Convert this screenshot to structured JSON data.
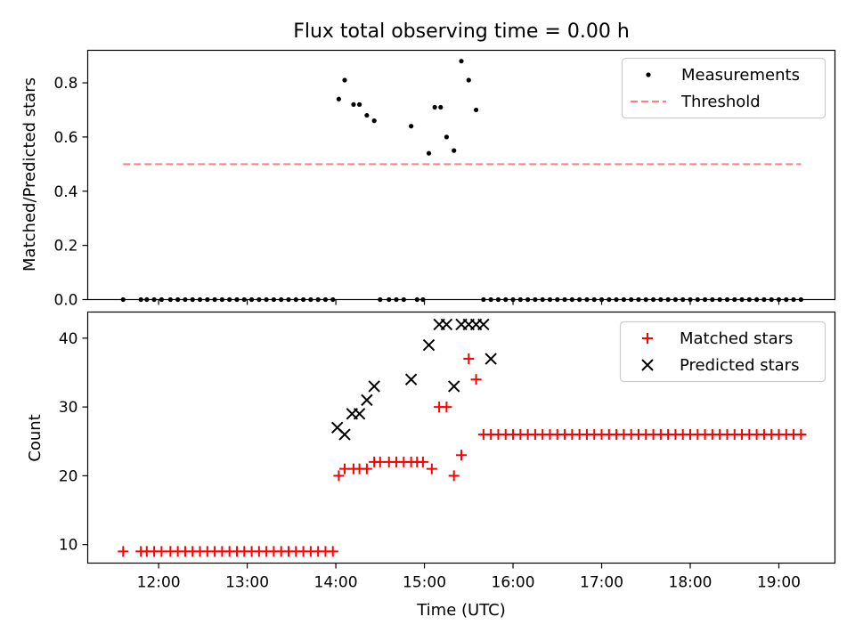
{
  "title": "Flux total observing time = 0.00 h",
  "chart_data": [
    {
      "type": "scatter",
      "ylabel": "Matched/Predicted stars",
      "xlabel": "",
      "ylim": [
        0,
        0.92
      ],
      "yticks": [
        0.0,
        0.2,
        0.4,
        0.6,
        0.8
      ],
      "legend_position": "top-right",
      "series": [
        {
          "name": "Measurements",
          "marker": "dot",
          "color": "#000000",
          "x": [
            "11:36",
            "11:48",
            "11:52",
            "11:57",
            "12:02",
            "12:08",
            "12:13",
            "12:18",
            "12:23",
            "12:28",
            "12:33",
            "12:38",
            "12:43",
            "12:48",
            "12:53",
            "12:58",
            "13:03",
            "13:08",
            "13:13",
            "13:18",
            "13:23",
            "13:28",
            "13:33",
            "13:38",
            "13:43",
            "13:48",
            "13:53",
            "13:58",
            "14:02",
            "14:06",
            "14:12",
            "14:16",
            "14:21",
            "14:26",
            "14:30",
            "14:36",
            "14:41",
            "14:46",
            "14:51",
            "14:55",
            "14:59",
            "15:03",
            "15:07",
            "15:11",
            "15:15",
            "15:20",
            "15:25",
            "15:30",
            "15:35",
            "15:40",
            "15:45",
            "15:50",
            "15:55",
            "16:00",
            "16:05",
            "16:10",
            "16:15",
            "16:20",
            "16:25",
            "16:30",
            "16:35",
            "16:40",
            "16:45",
            "16:50",
            "16:55",
            "17:00",
            "17:05",
            "17:10",
            "17:15",
            "17:20",
            "17:25",
            "17:30",
            "17:35",
            "17:40",
            "17:45",
            "17:50",
            "17:55",
            "18:00",
            "18:05",
            "18:10",
            "18:15",
            "18:20",
            "18:25",
            "18:30",
            "18:35",
            "18:40",
            "18:45",
            "18:50",
            "18:55",
            "19:00",
            "19:05",
            "19:10",
            "19:15"
          ],
          "y": [
            0,
            0,
            0,
            0,
            0,
            0,
            0,
            0,
            0,
            0,
            0,
            0,
            0,
            0,
            0,
            0,
            0,
            0,
            0,
            0,
            0,
            0,
            0,
            0,
            0,
            0,
            0,
            0,
            0.74,
            0.81,
            0.72,
            0.72,
            0.68,
            0.66,
            0,
            0,
            0,
            0,
            0.64,
            0,
            0,
            0.54,
            0.71,
            0.71,
            0.6,
            0.55,
            0.88,
            0.81,
            0.7,
            0,
            0,
            0,
            0,
            0,
            0,
            0,
            0,
            0,
            0,
            0,
            0,
            0,
            0,
            0,
            0,
            0,
            0,
            0,
            0,
            0,
            0,
            0,
            0,
            0,
            0,
            0,
            0,
            0,
            0,
            0,
            0,
            0,
            0,
            0,
            0,
            0,
            0,
            0,
            0,
            0,
            0,
            0,
            0
          ]
        },
        {
          "name": "Threshold",
          "marker": "dashed-line",
          "color": "#ff7f7f",
          "x": [
            "11:36",
            "19:15"
          ],
          "y": [
            0.5,
            0.5
          ]
        }
      ]
    },
    {
      "type": "scatter",
      "ylabel": "Count",
      "xlabel": "Time (UTC)",
      "ylim": [
        7.3,
        43.8
      ],
      "yticks": [
        10,
        20,
        30,
        40
      ],
      "xlim": [
        "11:12",
        "19:38"
      ],
      "xticks": [
        "12:00",
        "13:00",
        "14:00",
        "15:00",
        "16:00",
        "17:00",
        "18:00",
        "19:00"
      ],
      "legend_position": "top-right",
      "series": [
        {
          "name": "Matched stars",
          "marker": "plus",
          "color": "#ff0000",
          "x": [
            "11:36",
            "11:48",
            "11:52",
            "11:57",
            "12:02",
            "12:08",
            "12:13",
            "12:18",
            "12:23",
            "12:28",
            "12:33",
            "12:38",
            "12:43",
            "12:48",
            "12:53",
            "12:58",
            "13:03",
            "13:08",
            "13:13",
            "13:18",
            "13:23",
            "13:28",
            "13:33",
            "13:38",
            "13:43",
            "13:48",
            "13:53",
            "13:58",
            "14:02",
            "14:06",
            "14:12",
            "14:16",
            "14:21",
            "14:26",
            "14:30",
            "14:36",
            "14:41",
            "14:46",
            "14:51",
            "14:55",
            "14:59",
            "15:05",
            "15:10",
            "15:15",
            "15:20",
            "15:25",
            "15:30",
            "15:35",
            "15:40",
            "15:45",
            "15:50",
            "15:55",
            "16:00",
            "16:05",
            "16:10",
            "16:15",
            "16:20",
            "16:25",
            "16:30",
            "16:35",
            "16:40",
            "16:45",
            "16:50",
            "16:55",
            "17:00",
            "17:05",
            "17:10",
            "17:15",
            "17:20",
            "17:25",
            "17:30",
            "17:35",
            "17:40",
            "17:45",
            "17:50",
            "17:55",
            "18:00",
            "18:05",
            "18:10",
            "18:15",
            "18:20",
            "18:25",
            "18:30",
            "18:35",
            "18:40",
            "18:45",
            "18:50",
            "18:55",
            "19:00",
            "19:05",
            "19:10",
            "19:15"
          ],
          "y": [
            9,
            9,
            9,
            9,
            9,
            9,
            9,
            9,
            9,
            9,
            9,
            9,
            9,
            9,
            9,
            9,
            9,
            9,
            9,
            9,
            9,
            9,
            9,
            9,
            9,
            9,
            9,
            9,
            20,
            21,
            21,
            21,
            21,
            22,
            22,
            22,
            22,
            22,
            22,
            22,
            22,
            21,
            30,
            30,
            20,
            23,
            37,
            34,
            26,
            26,
            26,
            26,
            26,
            26,
            26,
            26,
            26,
            26,
            26,
            26,
            26,
            26,
            26,
            26,
            26,
            26,
            26,
            26,
            26,
            26,
            26,
            26,
            26,
            26,
            26,
            26,
            26,
            26,
            26,
            26,
            26,
            26,
            26,
            26,
            26,
            26,
            26,
            26,
            26,
            26,
            26,
            26
          ]
        },
        {
          "name": "Predicted stars",
          "marker": "x",
          "color": "#000000",
          "x": [
            "14:01",
            "14:06",
            "14:11",
            "14:16",
            "14:21",
            "14:26",
            "14:51",
            "15:03",
            "15:10",
            "15:15",
            "15:20",
            "15:25",
            "15:30",
            "15:35",
            "15:40",
            "15:45"
          ],
          "y": [
            27,
            26,
            29,
            29,
            31,
            33,
            34,
            39,
            42,
            42,
            33,
            42,
            42,
            42,
            42,
            37
          ]
        }
      ]
    }
  ]
}
